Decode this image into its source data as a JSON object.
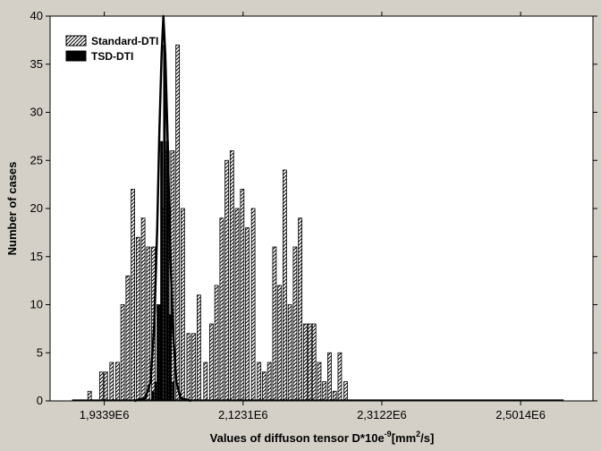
{
  "chart_data": {
    "type": "bar",
    "xlabel_main": "Values of diffuson tensor D*10e",
    "xlabel_exp": "-9",
    "xlabel_unit_open": "[mm",
    "xlabel_unit_exp": "2",
    "xlabel_unit_close": "/s]",
    "ylabel": "Number of cases",
    "xlim": [
      1.86,
      2.6
    ],
    "ylim": [
      0,
      40
    ],
    "y_ticks": [
      0,
      5,
      10,
      15,
      20,
      25,
      30,
      35,
      40
    ],
    "x_ticks": [
      {
        "value": 1.9339,
        "label": "1,9339E6"
      },
      {
        "value": 2.1231,
        "label": "2,1231E6"
      },
      {
        "value": 2.3122,
        "label": "2,3122E6"
      },
      {
        "value": 2.5014,
        "label": "2,5014E6"
      }
    ],
    "legend": {
      "placement": "top-left",
      "entries": [
        "Standard-DTI",
        "TSD-DTI"
      ]
    },
    "series": [
      {
        "name": "Standard-DTI",
        "style": "hatched",
        "bars": [
          {
            "x": 1.9139,
            "value": 1
          },
          {
            "x": 1.9299,
            "value": 3
          },
          {
            "x": 1.9359,
            "value": 3
          },
          {
            "x": 1.9439,
            "value": 4
          },
          {
            "x": 1.9519,
            "value": 4
          },
          {
            "x": 1.9589,
            "value": 10
          },
          {
            "x": 1.9659,
            "value": 13
          },
          {
            "x": 1.9729,
            "value": 22
          },
          {
            "x": 1.9799,
            "value": 17
          },
          {
            "x": 1.9869,
            "value": 19
          },
          {
            "x": 1.9939,
            "value": 16
          },
          {
            "x": 2.0009,
            "value": 16
          },
          {
            "x": 2.0079,
            "value": 10
          },
          {
            "x": 2.0139,
            "value": 20
          },
          {
            "x": 2.0199,
            "value": 26
          },
          {
            "x": 2.0269,
            "value": 26
          },
          {
            "x": 2.0339,
            "value": 37
          },
          {
            "x": 2.0409,
            "value": 20
          },
          {
            "x": 2.0489,
            "value": 7
          },
          {
            "x": 2.0559,
            "value": 7
          },
          {
            "x": 2.0629,
            "value": 11
          },
          {
            "x": 2.0719,
            "value": 4
          },
          {
            "x": 2.0799,
            "value": 8
          },
          {
            "x": 2.0869,
            "value": 12
          },
          {
            "x": 2.0939,
            "value": 19
          },
          {
            "x": 2.1009,
            "value": 25
          },
          {
            "x": 2.1079,
            "value": 26
          },
          {
            "x": 2.1149,
            "value": 20
          },
          {
            "x": 2.1219,
            "value": 22
          },
          {
            "x": 2.1289,
            "value": 18
          },
          {
            "x": 2.1369,
            "value": 20
          },
          {
            "x": 2.1449,
            "value": 4
          },
          {
            "x": 2.1519,
            "value": 3
          },
          {
            "x": 2.1589,
            "value": 4
          },
          {
            "x": 2.1659,
            "value": 16
          },
          {
            "x": 2.1729,
            "value": 12
          },
          {
            "x": 2.1799,
            "value": 24
          },
          {
            "x": 2.1869,
            "value": 10
          },
          {
            "x": 2.1939,
            "value": 16
          },
          {
            "x": 2.2009,
            "value": 19
          },
          {
            "x": 2.2079,
            "value": 8
          },
          {
            "x": 2.2139,
            "value": 8
          },
          {
            "x": 2.2199,
            "value": 8
          },
          {
            "x": 2.2269,
            "value": 4
          },
          {
            "x": 2.2339,
            "value": 2
          },
          {
            "x": 2.2409,
            "value": 5
          },
          {
            "x": 2.2479,
            "value": 1
          },
          {
            "x": 2.2549,
            "value": 5
          },
          {
            "x": 2.2629,
            "value": 2
          }
        ]
      },
      {
        "name": "TSD-DTI",
        "style": "solid",
        "bars": [
          {
            "x": 2.0,
            "value": 1
          },
          {
            "x": 2.004,
            "value": 2
          },
          {
            "x": 2.008,
            "value": 10
          },
          {
            "x": 2.012,
            "value": 27
          },
          {
            "x": 2.016,
            "value": 37
          },
          {
            "x": 2.02,
            "value": 27
          },
          {
            "x": 2.024,
            "value": 9
          },
          {
            "x": 2.028,
            "value": 2
          }
        ]
      },
      {
        "name": "TSD-DTI fit",
        "style": "curve",
        "points": [
          [
            1.975,
            0
          ],
          [
            1.99,
            0.3
          ],
          [
            1.997,
            2
          ],
          [
            2.002,
            8
          ],
          [
            2.006,
            18
          ],
          [
            2.009,
            28
          ],
          [
            2.012,
            36
          ],
          [
            2.0145,
            40
          ],
          [
            2.017,
            36
          ],
          [
            2.02,
            28
          ],
          [
            2.023,
            18
          ],
          [
            2.027,
            8
          ],
          [
            2.032,
            2
          ],
          [
            2.038,
            0.3
          ],
          [
            2.052,
            0
          ]
        ]
      },
      {
        "name": "Standard-DTI fit",
        "style": "flat-line",
        "points": [
          [
            1.89,
            0
          ],
          [
            2.56,
            0
          ]
        ]
      }
    ]
  }
}
